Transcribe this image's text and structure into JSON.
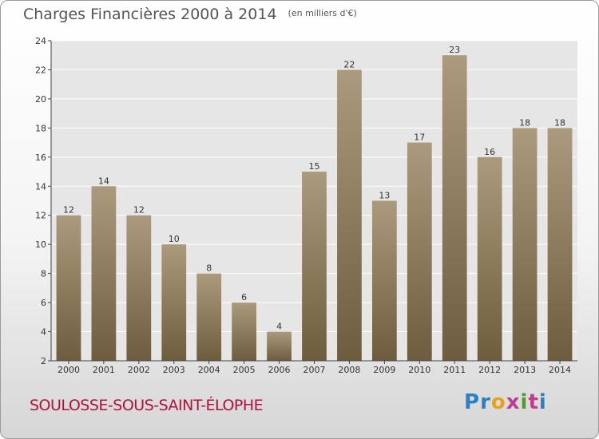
{
  "header": {
    "title": "Charges Financières 2000 à 2014",
    "subtitle": "(en milliers d'€)"
  },
  "footer": {
    "commune": "SOULOSSE-SOUS-SAINT-ÉLOPHE",
    "logo_text": "Proxiti"
  },
  "colors": {
    "bar_top": "#ab9a7d",
    "bar_bottom": "#6e5c3e",
    "plot_bg": "#e6e6e6",
    "grid": "#ffffff",
    "commune": "#b0123e"
  },
  "chart_data": {
    "type": "bar",
    "title": "Charges Financières 2000 à 2014",
    "subtitle": "(en milliers d'€)",
    "categories": [
      "2000",
      "2001",
      "2002",
      "2003",
      "2004",
      "2005",
      "2006",
      "2007",
      "2008",
      "2009",
      "2010",
      "2011",
      "2012",
      "2013",
      "2014"
    ],
    "values": [
      12,
      14,
      12,
      10,
      8,
      6,
      4,
      15,
      22,
      13,
      17,
      23,
      16,
      18,
      18
    ],
    "data_labels": [
      "12",
      "14",
      "12",
      "10",
      "8",
      "6",
      "4",
      "15",
      "22",
      "13",
      "17",
      "23",
      "16",
      "18",
      "18"
    ],
    "ylim": [
      2,
      24
    ],
    "yticks": [
      2,
      4,
      6,
      8,
      10,
      12,
      14,
      16,
      18,
      20,
      22,
      24
    ],
    "ytick_labels": [
      "2",
      "4",
      "6",
      "8",
      "10",
      "12",
      "14",
      "16",
      "18",
      "20",
      "22",
      "24"
    ],
    "grid": true,
    "legend": "none"
  }
}
